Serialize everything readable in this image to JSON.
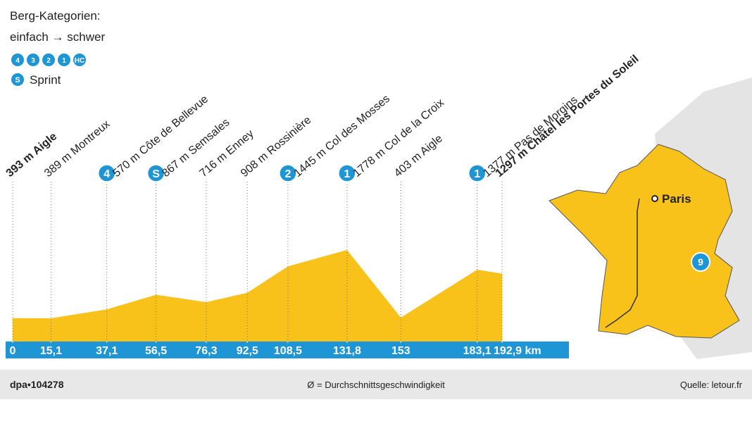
{
  "chart_data": {
    "type": "area",
    "legend_title": "Berg-Kategorien:",
    "legend_subtitle": "einfach → schwer",
    "legend_badges": [
      "4",
      "3",
      "2",
      "1",
      "HC"
    ],
    "sprint_badge": "S",
    "sprint_label": "Sprint",
    "x": [
      0,
      15.1,
      37.1,
      56.5,
      76.3,
      92.5,
      108.5,
      131.8,
      153,
      183.1,
      192.9
    ],
    "values": [
      393,
      389,
      570,
      867,
      716,
      908,
      1445,
      1778,
      403,
      1377,
      1297
    ],
    "value_labels": [
      "393 m Aigle",
      "389 m Montreux",
      "570 m Côte de Bellevue",
      "867 m Semsales",
      "716 m Enney",
      "908 m Rossinière",
      "1445 m Col des Mosses",
      "1778 m Col de la Croix",
      "403 m Aigle",
      "1377 m Pas de Morgins",
      "1297 m Châtel les Portes du Soleil"
    ],
    "badges": [
      null,
      null,
      "4",
      "S",
      null,
      null,
      "2",
      "1",
      null,
      "1",
      null
    ],
    "xticks": [
      0,
      {
        "value": 15.1,
        "label": "15,1"
      },
      {
        "value": 37.1,
        "label": "37,1"
      },
      {
        "value": 56.5,
        "label": "56,5"
      },
      {
        "value": 76.3,
        "label": "76,3"
      },
      {
        "value": 92.5,
        "label": "92,5"
      },
      {
        "value": 108.5,
        "label": "108,5"
      },
      {
        "value": 131.8,
        "label": "131,8"
      },
      153,
      {
        "value": 183.1,
        "label": "183,1"
      },
      {
        "value": 192.9,
        "label": "192,9 km"
      }
    ],
    "color": "#f8c21b",
    "axis_color": "#1e95d4",
    "map_city": "Paris",
    "map_stage": "9",
    "footer_left": "dpa•104278",
    "footer_center": "Ø = Durchschnittsgeschwindigkeit",
    "footer_right": "Quelle: letour.fr"
  }
}
